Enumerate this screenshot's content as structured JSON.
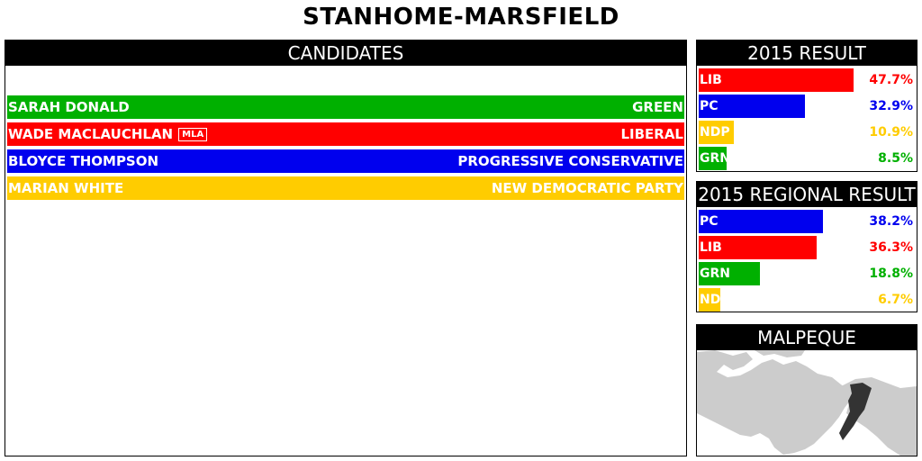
{
  "page_title": "STANHOME-MARSFIELD",
  "candidates_panel": {
    "header": "CANDIDATES",
    "rows": [
      {
        "name": "SARAH DONALD",
        "party": "GREEN",
        "color": "#00b000",
        "mla": false
      },
      {
        "name": "WADE MACLAUCHLAN",
        "party": "LIBERAL",
        "color": "#ff0000",
        "mla": true,
        "mla_badge": "MLA"
      },
      {
        "name": "BLOYCE THOMPSON",
        "party": "PROGRESSIVE CONSERVATIVE",
        "color": "#0000ee",
        "mla": false
      },
      {
        "name": "MARIAN WHITE",
        "party": "NEW DEMOCRATIC PARTY",
        "color": "#ffcc00",
        "mla": false
      }
    ]
  },
  "result_2015": {
    "header": "2015 RESULT",
    "rows": [
      {
        "label": "LIB",
        "pct_text": "47.7%",
        "value": 47.7,
        "color": "#ff0000"
      },
      {
        "label": "PC",
        "pct_text": "32.9%",
        "value": 32.9,
        "color": "#0000ee"
      },
      {
        "label": "NDP",
        "pct_text": "10.9%",
        "value": 10.9,
        "color": "#ffcc00"
      },
      {
        "label": "GRN",
        "pct_text": "8.5%",
        "value": 8.5,
        "color": "#00b000"
      }
    ]
  },
  "regional_2015": {
    "header": "2015 REGIONAL RESULT",
    "rows": [
      {
        "label": "PC",
        "pct_text": "38.2%",
        "value": 38.2,
        "color": "#0000ee"
      },
      {
        "label": "LIB",
        "pct_text": "36.3%",
        "value": 36.3,
        "color": "#ff0000"
      },
      {
        "label": "GRN",
        "pct_text": "18.8%",
        "value": 18.8,
        "color": "#00b000"
      },
      {
        "label": "NDP",
        "pct_text": "6.7%",
        "value": 6.7,
        "color": "#ffcc00"
      }
    ]
  },
  "map_panel": {
    "header": "MALPEQUE",
    "land_color": "#cccccc",
    "district_color": "#333333"
  }
}
